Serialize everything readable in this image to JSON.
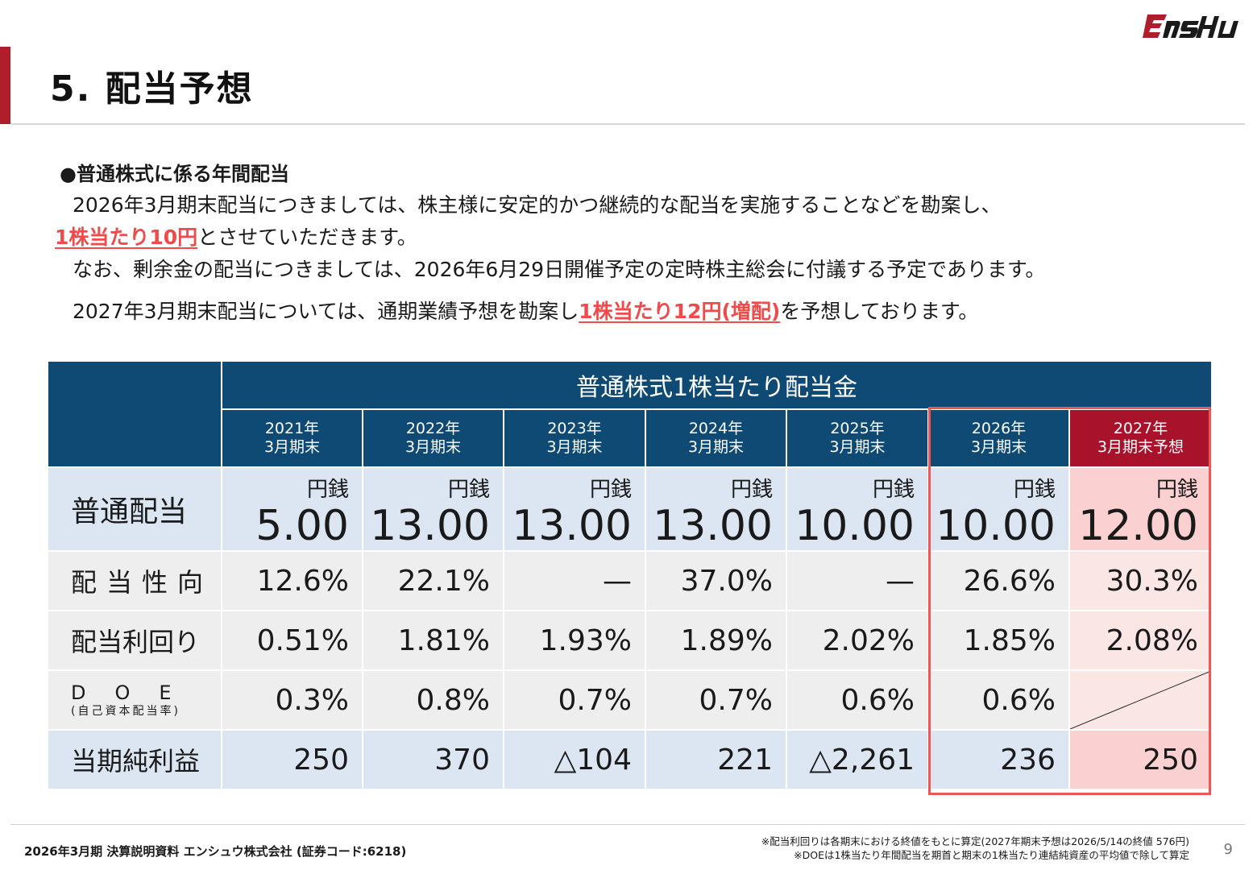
{
  "brand": {
    "name": "ENSHU",
    "accent": "#b01e2d",
    "table_header_color": "#0e4a74",
    "highlight_color": "#f04a4a"
  },
  "title": "5. 配当予想",
  "section_heading": "●普通株式に係る年間配当",
  "paragraphs": {
    "p1_line1": "2026年3月期末配当につきましては、株主様に安定的かつ継続的な配当を実施することなどを勘案し、",
    "p1_highlight": "1株当たり10円",
    "p1_rest": "とさせていただきます。",
    "p2": "なお、剰余金の配当につきましては、2026年6月29日開催予定の定時株主総会に付議する予定であります。",
    "p3_before": "2027年3月期末配当については、通期業績予想を勘案し",
    "p3_highlight": "1株当たり12円(増配)",
    "p3_after": "を予想しております。"
  },
  "table": {
    "header_main": "普通株式1株当たり配当金",
    "columns": [
      {
        "year": "2021年",
        "period": "3月期末"
      },
      {
        "year": "2022年",
        "period": "3月期末"
      },
      {
        "year": "2023年",
        "period": "3月期末"
      },
      {
        "year": "2024年",
        "period": "3月期末"
      },
      {
        "year": "2025年",
        "period": "3月期末"
      },
      {
        "year": "2026年",
        "period": "3月期末"
      },
      {
        "year": "2027年",
        "period": "3月期末予想"
      }
    ],
    "unit": "円銭",
    "rows": {
      "dividend": {
        "label": "普通配当",
        "values": [
          "5.00",
          "13.00",
          "13.00",
          "13.00",
          "10.00",
          "10.00",
          "12.00"
        ]
      },
      "payout": {
        "label": "配当性向",
        "values": [
          "12.6%",
          "22.1%",
          "—",
          "37.0%",
          "—",
          "26.6%",
          "30.3%"
        ]
      },
      "yield": {
        "label": "配当利回り",
        "values": [
          "0.51%",
          "1.81%",
          "1.93%",
          "1.89%",
          "2.02%",
          "1.85%",
          "2.08%"
        ]
      },
      "doe": {
        "label": "DOE",
        "sublabel": "(自己資本配当率)",
        "values": [
          "0.3%",
          "0.8%",
          "0.7%",
          "0.7%",
          "0.6%",
          "0.6%",
          ""
        ]
      },
      "net_income": {
        "label": "当期純利益",
        "values": [
          "250",
          "370",
          "△104",
          "221",
          "△2,261",
          "236",
          "250"
        ]
      }
    }
  },
  "footer": {
    "left": "2026年3月期 決算説明資料 エンシュウ株式会社 (証券コード:6218)",
    "note1": "※配当利回りは各期末における終値をもとに算定(2027年期末予想は2026/5/14の終値 576円)",
    "note2": "※DOEは1株当たり年間配当を期首と期末の1株当たり連結純資産の平均値で除して算定",
    "page": "9"
  }
}
